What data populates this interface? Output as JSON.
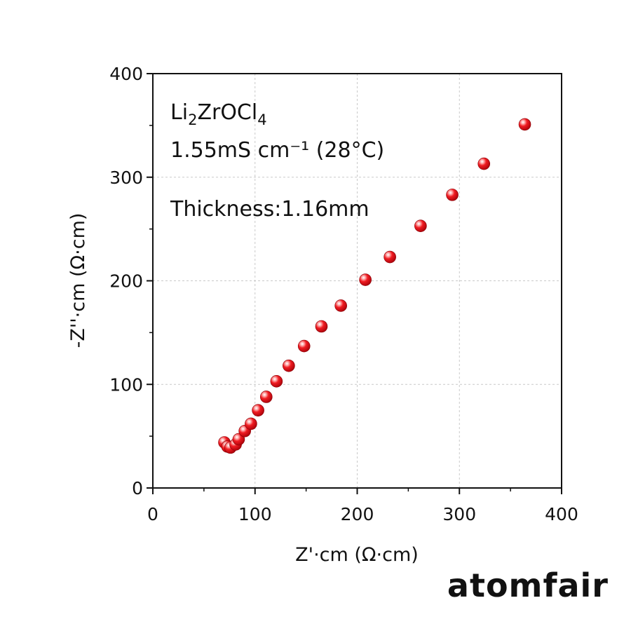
{
  "chart_data": {
    "type": "scatter",
    "xlabel": "Z'·cm (Ω·cm)",
    "ylabel": "-Z''·cm (Ω·cm)",
    "xlim": [
      0,
      400
    ],
    "ylim": [
      0,
      400
    ],
    "xticks": [
      "0",
      "100",
      "200",
      "300",
      "400"
    ],
    "yticks": [
      "0",
      "100",
      "200",
      "300",
      "400"
    ],
    "grid": true,
    "marker_color": "#e8141b",
    "annotations": {
      "formula_parts": [
        "Li",
        "2",
        "ZrOCl",
        "4"
      ],
      "conductivity": "1.55mS cm⁻¹  (28°C)",
      "thickness": "Thickness:1.16mm"
    },
    "series": [
      {
        "x": [
          70,
          73,
          76,
          81,
          84,
          90,
          96,
          103,
          111,
          121,
          133,
          148,
          165,
          184,
          208,
          232,
          262,
          293,
          324,
          364
        ],
        "y": [
          44,
          40,
          39,
          42,
          47,
          55,
          62,
          75,
          88,
          103,
          118,
          137,
          156,
          176,
          201,
          223,
          253,
          283,
          313,
          351
        ]
      }
    ]
  },
  "watermark": "atomfair"
}
